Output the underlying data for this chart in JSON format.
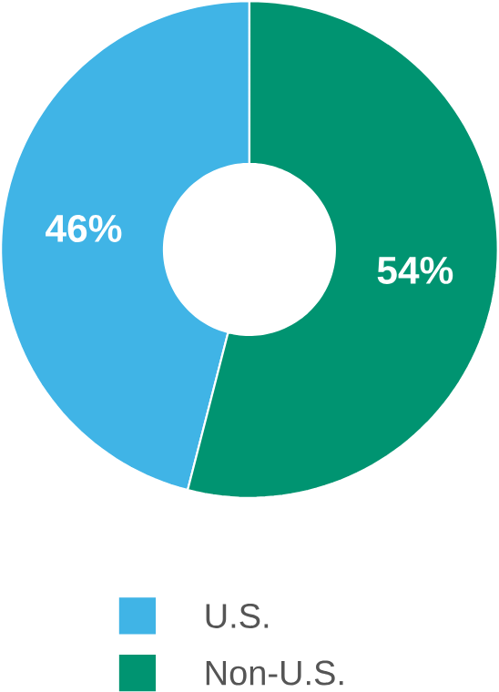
{
  "chart_data": {
    "type": "donut",
    "categories": [
      "U.S.",
      "Non-U.S."
    ],
    "values": [
      46,
      54
    ],
    "colors": [
      "#40b4e6",
      "#009471"
    ],
    "value_labels": [
      "46%",
      "54%"
    ],
    "legend": "bottom"
  }
}
